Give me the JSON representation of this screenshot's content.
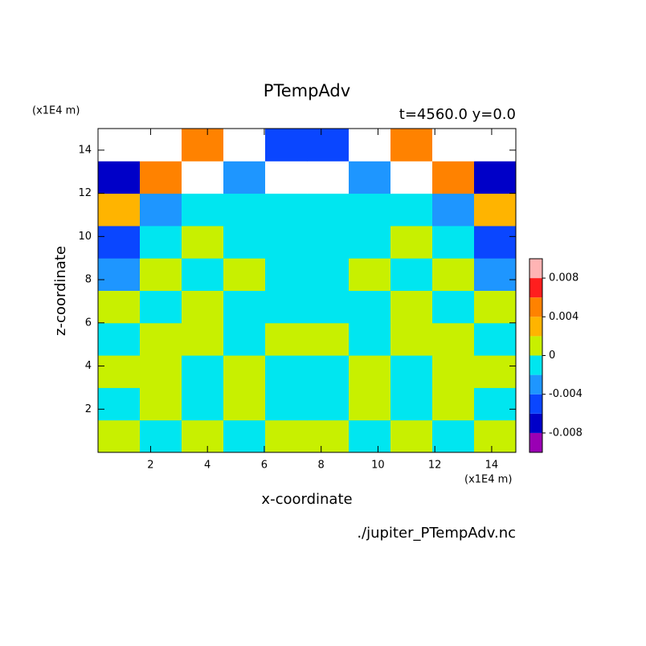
{
  "chart_data": {
    "type": "contourf",
    "title": "PTempAdv",
    "subtitle": "t=4560.0 y=0.0",
    "x_label": "x-coordinate",
    "y_label": "z-coordinate",
    "x_unit": "(x1E4 m)",
    "y_unit": "(x1E4 m)",
    "footnote": "./jupiter_PTempAdv.nc",
    "xlim": [
      0.15,
      14.85
    ],
    "ylim": [
      0,
      15
    ],
    "xticks": [
      2,
      4,
      6,
      8,
      10,
      12,
      14
    ],
    "yticks": [
      2,
      4,
      6,
      8,
      10,
      12,
      14
    ],
    "x_bins": [
      0.15,
      1.62,
      3.09,
      4.56,
      6.03,
      7.5,
      8.97,
      10.44,
      11.91,
      13.38,
      14.85
    ],
    "y_bins": [
      0,
      1.5,
      3,
      4.5,
      6,
      7.5,
      9,
      10.5,
      12,
      13.5,
      15
    ],
    "z": [
      [
        0.001,
        -0.001,
        0.001,
        -0.001,
        0.001,
        0.001,
        -0.001,
        0.001,
        -0.001,
        0.001
      ],
      [
        -0.001,
        0.001,
        -0.001,
        0.001,
        -0.001,
        -0.001,
        0.001,
        -0.001,
        0.001,
        -0.001
      ],
      [
        0.001,
        0.001,
        -0.001,
        0.001,
        -0.001,
        -0.001,
        0.001,
        -0.001,
        0.001,
        0.001
      ],
      [
        -0.001,
        0.001,
        0.001,
        -0.001,
        0.001,
        0.001,
        -0.001,
        0.001,
        0.001,
        -0.001
      ],
      [
        0.001,
        -0.001,
        0.001,
        -0.001,
        -0.001,
        -0.001,
        -0.001,
        0.001,
        -0.001,
        0.001
      ],
      [
        -0.003,
        0.001,
        -0.001,
        0.001,
        -0.001,
        -0.001,
        0.001,
        -0.001,
        0.001,
        -0.003
      ],
      [
        -0.005,
        -0.001,
        0.001,
        -0.001,
        -0.001,
        -0.001,
        -0.001,
        0.001,
        -0.001,
        -0.005
      ],
      [
        0.003,
        -0.003,
        -0.001,
        -0.001,
        -0.001,
        -0.001,
        -0.001,
        -0.001,
        -0.003,
        0.003
      ],
      [
        -0.007,
        0.005,
        0.012,
        -0.003,
        0.012,
        0.012,
        -0.003,
        0.012,
        0.005,
        -0.007
      ],
      [
        0.012,
        0.012,
        0.005,
        0.012,
        -0.005,
        -0.005,
        0.012,
        0.005,
        0.012,
        0.012
      ]
    ],
    "levels": [
      -0.01,
      -0.008,
      -0.006,
      -0.004,
      -0.002,
      0,
      0.002,
      0.004,
      0.006,
      0.008,
      0.01
    ],
    "colors": [
      "#9a00b4",
      "#0000c8",
      "#0a46ff",
      "#1e96ff",
      "#00e6f0",
      "#c8f000",
      "#ffb400",
      "#ff8200",
      "#ff1e1e",
      "#ffb4b4"
    ],
    "out_of_range_color": "#ffffff",
    "colorbar_ticks": [
      0.008,
      0.004,
      0,
      -0.004,
      -0.008
    ]
  }
}
